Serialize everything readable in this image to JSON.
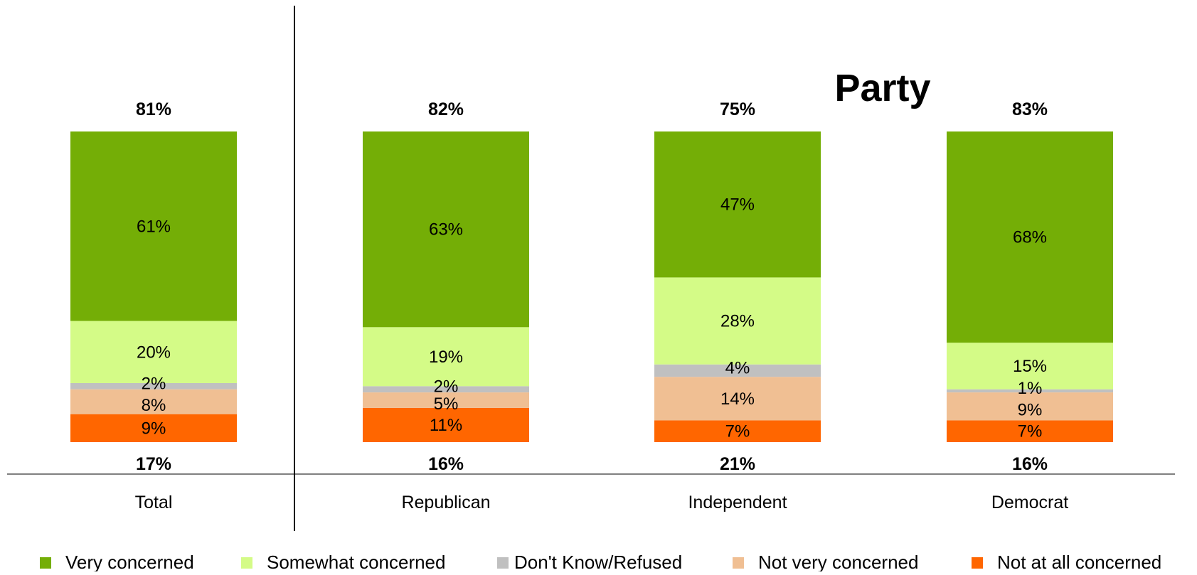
{
  "chart_data": {
    "type": "bar",
    "stacked": true,
    "title": "",
    "group_label": "Party",
    "categories": [
      "Total",
      "Republican",
      "Independent",
      "Democrat"
    ],
    "series": [
      {
        "name": "Not at all concerned",
        "color": "#ff6600",
        "values": [
          9,
          11,
          7,
          7
        ]
      },
      {
        "name": "Not very concerned",
        "color": "#f0bf93",
        "values": [
          8,
          5,
          14,
          9
        ]
      },
      {
        "name": "Don't Know/Refused",
        "color": "#c0c0c0",
        "values": [
          2,
          2,
          4,
          1
        ]
      },
      {
        "name": "Somewhat concerned",
        "color": "#d4fb87",
        "values": [
          20,
          19,
          28,
          15
        ]
      },
      {
        "name": "Very concerned",
        "color": "#74ae06",
        "values": [
          61,
          63,
          47,
          68
        ]
      }
    ],
    "segment_labels": [
      [
        "9%",
        "11%",
        "7%",
        "7%"
      ],
      [
        "8%",
        "5%",
        "14%",
        "9%"
      ],
      [
        "2%",
        "2%",
        "4%",
        "1%"
      ],
      [
        "20%",
        "19%",
        "28%",
        "15%"
      ],
      [
        "61%",
        "63%",
        "47%",
        "68%"
      ]
    ],
    "top_totals": [
      "81%",
      "82%",
      "75%",
      "83%"
    ],
    "bottom_totals": [
      "17%",
      "16%",
      "21%",
      "16%"
    ],
    "legend": [
      "Very concerned",
      "Somewhat concerned",
      "Don't Know/Refused",
      "Not very concerned",
      "Not at all concerned"
    ],
    "legend_position": "bottom",
    "ylim": [
      0,
      100
    ],
    "grid": false
  }
}
